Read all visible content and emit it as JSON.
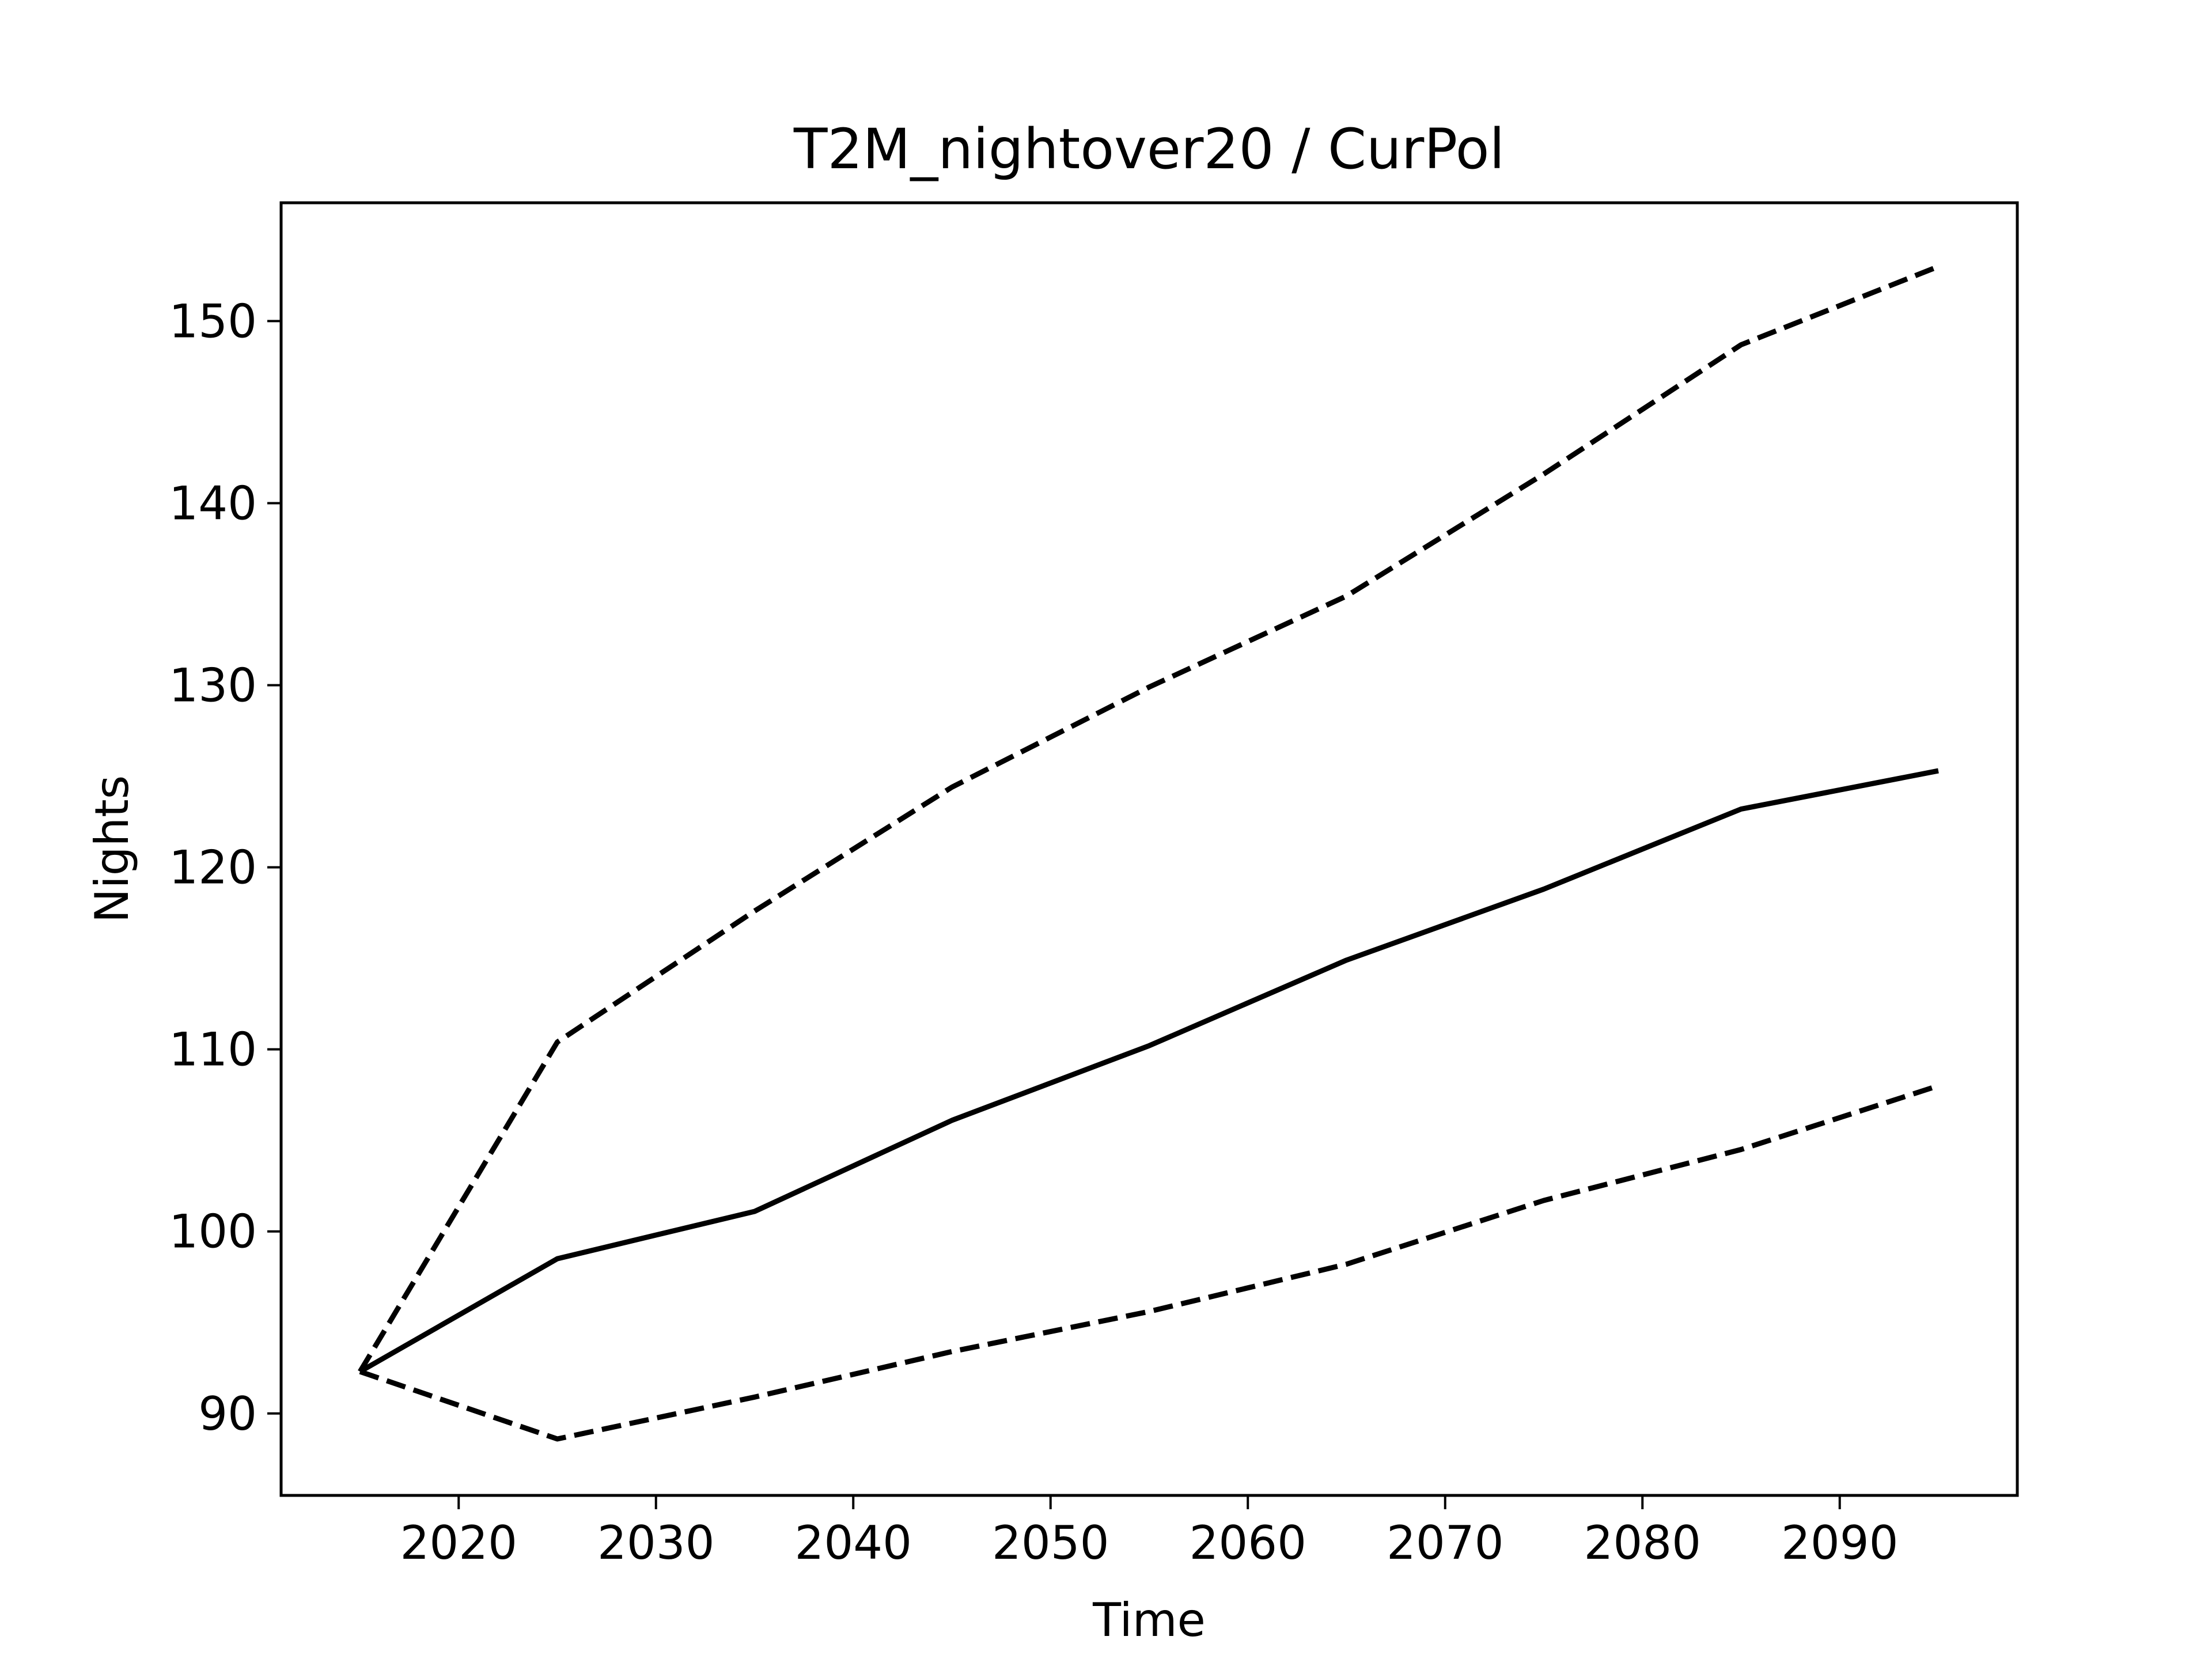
{
  "chart_data": {
    "type": "line",
    "title": "T2M_nightover20 / CurPol",
    "xlabel": "Time",
    "ylabel": "Nights",
    "xlim": [
      2011,
      2099
    ],
    "ylim": [
      85.5,
      156.5
    ],
    "xticks": [
      2020,
      2030,
      2040,
      2050,
      2060,
      2070,
      2080,
      2090
    ],
    "yticks": [
      90,
      100,
      110,
      120,
      130,
      140,
      150
    ],
    "grid": false,
    "legend": "none",
    "x": [
      2015,
      2025,
      2035,
      2045,
      2055,
      2065,
      2075,
      2085,
      2095
    ],
    "series": [
      {
        "style": "dashed",
        "color": "#000000",
        "values": [
          92.3,
          110.4,
          117.6,
          124.4,
          129.9,
          134.9,
          141.6,
          148.7,
          153.0
        ]
      },
      {
        "style": "solid",
        "color": "#000000",
        "values": [
          92.3,
          98.5,
          101.1,
          106.1,
          110.2,
          114.9,
          118.8,
          123.2,
          125.3
        ]
      },
      {
        "style": "dashed",
        "color": "#000000",
        "values": [
          92.3,
          88.6,
          90.9,
          93.4,
          95.6,
          98.2,
          101.7,
          104.5,
          108.0
        ]
      }
    ]
  }
}
